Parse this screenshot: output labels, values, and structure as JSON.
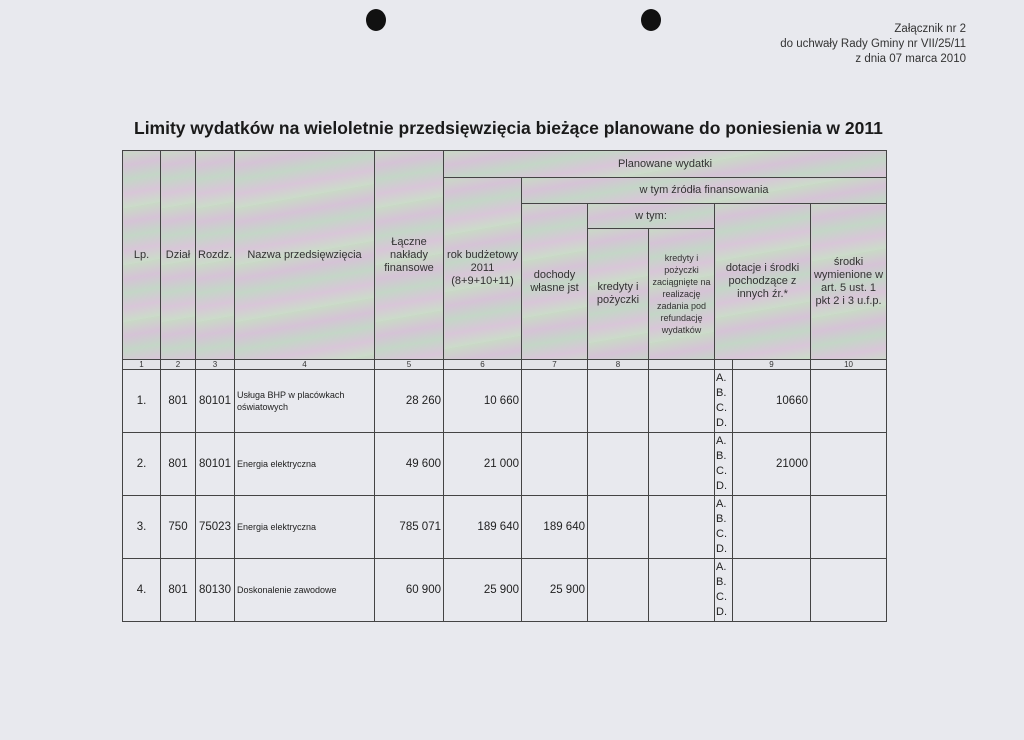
{
  "annex": {
    "line1": "Załącznik nr 2",
    "line2": "do uchwały Rady Gminy nr VII/25/11",
    "line3": "z dnia 07 marca 2010"
  },
  "title": "Limity wydatków na wieloletnie przedsięwzięcia bieżące planowane do poniesienia w 2011",
  "headers": {
    "lp": "Lp.",
    "dzial": "Dział",
    "rozdz": "Rozdz.",
    "nazwa": "Nazwa przedsięwzięcia",
    "laczne": "Łączne nakłady finansowe",
    "planowane": "Planowane wydatki",
    "rok": "rok budżetowy 2011 (8+9+10+11)",
    "zrodla": "w tym źródła finansowania",
    "dochody": "dochody własne jst",
    "w_tym": "w tym:",
    "kredyty": "kredyty i pożyczki",
    "kredyty_ref": "kredyty i pożyczki zaciągnięte na realizację zadania pod refundację wydatków",
    "dotacje": "dotacje i środki pochodzące z innych źr.*",
    "srodki": "środki wymienione w art. 5 ust. 1 pkt 2 i 3 u.f.p."
  },
  "column_numbers": [
    "1",
    "2",
    "3",
    "4",
    "5",
    "6",
    "7",
    "8",
    "",
    "",
    "9",
    "10"
  ],
  "rows": [
    {
      "lp": "1.",
      "dzial": "801",
      "rozdz": "80101",
      "nazwa": "Usługa BHP w placówkach oświatowych",
      "laczne": "28 260",
      "rok": "10 660",
      "dochody": "",
      "kredyty": "",
      "kredyty_ref": "",
      "abcd": "A. B. C. D.",
      "dotacje": "10660",
      "srodki": ""
    },
    {
      "lp": "2.",
      "dzial": "801",
      "rozdz": "80101",
      "nazwa": "Energia elektryczna",
      "laczne": "49 600",
      "rok": "21 000",
      "dochody": "",
      "kredyty": "",
      "kredyty_ref": "",
      "abcd": "A. B. C. D.",
      "dotacje": "21000",
      "srodki": ""
    },
    {
      "lp": "3.",
      "dzial": "750",
      "rozdz": "75023",
      "nazwa": "Energia elektryczna",
      "laczne": "785 071",
      "rok": "189 640",
      "dochody": "189 640",
      "kredyty": "",
      "kredyty_ref": "",
      "abcd": "A. B. C. D.",
      "dotacje": "",
      "srodki": ""
    },
    {
      "lp": "4.",
      "dzial": "801",
      "rozdz": "80130",
      "nazwa": "Doskonalenie zawodowe",
      "laczne": "60 900",
      "rok": "25 900",
      "dochody": "25 900",
      "kredyty": "",
      "kredyty_ref": "",
      "abcd": "A. B. C. D.",
      "dotacje": "",
      "srodki": ""
    }
  ]
}
